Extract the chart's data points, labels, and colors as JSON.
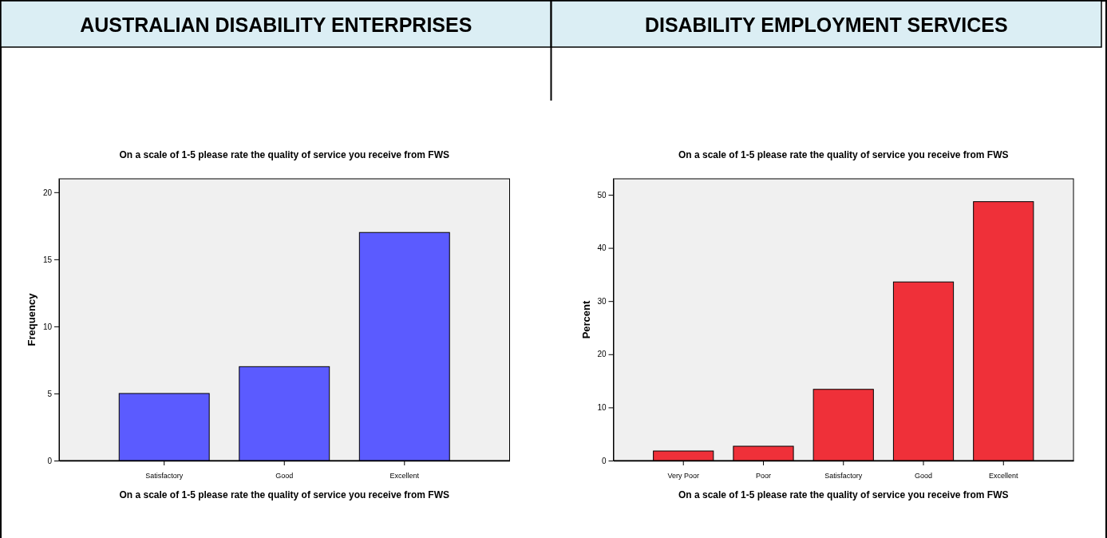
{
  "chart_data": [
    {
      "type": "bar",
      "title": "AUSTRALIAN DISABILITY ENTERPRISES",
      "subtitle": "On a scale of 1-5 please rate the quality of service you receive from FWS",
      "xlabel": "On a scale of 1-5 please rate the quality of service you receive from FWS",
      "ylabel": "Frequency",
      "categories": [
        "Satisfactory",
        "Good",
        "Excellent"
      ],
      "values": [
        5,
        7,
        17
      ],
      "color": "#5b5bff",
      "ylim": [
        0,
        21
      ],
      "yticks": [
        0,
        5,
        10,
        15,
        20
      ],
      "grid": false
    },
    {
      "type": "bar",
      "title": "DISABILITY EMPLOYMENT SERVICES",
      "subtitle": "On a scale of 1-5 please rate the quality of service you receive from FWS",
      "xlabel": "On a scale of 1-5 please rate the quality of service you receive from FWS",
      "ylabel": "Percent",
      "categories": [
        "Very Poor",
        "Poor",
        "Satisfactory",
        "Good",
        "Excellent"
      ],
      "values": [
        1.8,
        2.7,
        13.4,
        33.6,
        48.7
      ],
      "color": "#ef3039",
      "ylim": [
        0,
        53
      ],
      "yticks": [
        0,
        10,
        20,
        30,
        40,
        50
      ],
      "grid": false
    }
  ]
}
